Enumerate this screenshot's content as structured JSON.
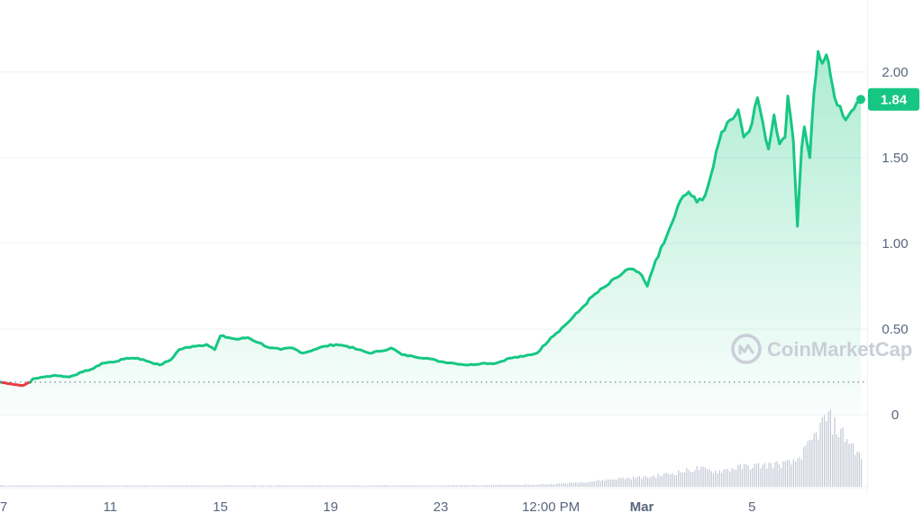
{
  "chart_data": {
    "type": "area",
    "y_axis": {
      "ticks": [
        0,
        0.5,
        1.0,
        1.5,
        2.0
      ],
      "tick_labels": [
        "0",
        "0.50",
        "1.00",
        "1.50",
        "2.00"
      ],
      "range": [
        0,
        2.4
      ]
    },
    "x_axis": {
      "range": [
        "Feb 7",
        "Mar 6 PM"
      ],
      "ticks": [
        {
          "t": 0,
          "label": "7"
        },
        {
          "t": 4,
          "label": "11"
        },
        {
          "t": 8,
          "label": "15"
        },
        {
          "t": 12,
          "label": "19"
        },
        {
          "t": 16,
          "label": "23"
        },
        {
          "t": 20,
          "label": "12:00 PM"
        },
        {
          "t": 23.3,
          "label": "Mar",
          "bold": true
        },
        {
          "t": 27.3,
          "label": "5"
        }
      ]
    },
    "reference_price": 0.19,
    "current_price": {
      "value": 1.84,
      "label": "1.84"
    },
    "series": [
      {
        "values": [
          [
            0,
            0.19
          ],
          [
            0.4,
            0.18
          ],
          [
            0.8,
            0.17
          ],
          [
            1.1,
            0.19
          ],
          [
            1.2,
            0.21
          ],
          [
            1.6,
            0.22
          ],
          [
            2.0,
            0.23
          ],
          [
            2.5,
            0.22
          ],
          [
            3.0,
            0.25
          ],
          [
            3.4,
            0.27
          ],
          [
            3.7,
            0.3
          ],
          [
            4.2,
            0.31
          ],
          [
            4.6,
            0.33
          ],
          [
            5.0,
            0.33
          ],
          [
            5.4,
            0.31
          ],
          [
            5.8,
            0.29
          ],
          [
            6.2,
            0.32
          ],
          [
            6.5,
            0.38
          ],
          [
            7.0,
            0.4
          ],
          [
            7.5,
            0.41
          ],
          [
            7.8,
            0.38
          ],
          [
            8.0,
            0.46
          ],
          [
            8.3,
            0.45
          ],
          [
            8.6,
            0.44
          ],
          [
            9.0,
            0.45
          ],
          [
            9.4,
            0.42
          ],
          [
            9.8,
            0.39
          ],
          [
            10.2,
            0.38
          ],
          [
            10.6,
            0.39
          ],
          [
            11.0,
            0.36
          ],
          [
            11.4,
            0.38
          ],
          [
            11.8,
            0.4
          ],
          [
            12.2,
            0.41
          ],
          [
            12.6,
            0.4
          ],
          [
            13.0,
            0.38
          ],
          [
            13.4,
            0.36
          ],
          [
            13.8,
            0.37
          ],
          [
            14.2,
            0.39
          ],
          [
            14.6,
            0.35
          ],
          [
            15.0,
            0.34
          ],
          [
            15.5,
            0.33
          ],
          [
            16.0,
            0.31
          ],
          [
            16.5,
            0.3
          ],
          [
            17.0,
            0.29
          ],
          [
            17.5,
            0.3
          ],
          [
            18.0,
            0.3
          ],
          [
            18.5,
            0.33
          ],
          [
            19.0,
            0.34
          ],
          [
            19.5,
            0.36
          ],
          [
            20.0,
            0.45
          ],
          [
            20.5,
            0.52
          ],
          [
            21.0,
            0.6
          ],
          [
            21.5,
            0.69
          ],
          [
            22.0,
            0.75
          ],
          [
            22.4,
            0.8
          ],
          [
            22.8,
            0.85
          ],
          [
            23.2,
            0.83
          ],
          [
            23.5,
            0.75
          ],
          [
            23.8,
            0.9
          ],
          [
            24.1,
            1.0
          ],
          [
            24.4,
            1.12
          ],
          [
            24.7,
            1.25
          ],
          [
            25.0,
            1.3
          ],
          [
            25.3,
            1.24
          ],
          [
            25.6,
            1.28
          ],
          [
            25.9,
            1.45
          ],
          [
            26.2,
            1.65
          ],
          [
            26.5,
            1.72
          ],
          [
            26.8,
            1.78
          ],
          [
            27.0,
            1.62
          ],
          [
            27.3,
            1.7
          ],
          [
            27.5,
            1.85
          ],
          [
            27.7,
            1.7
          ],
          [
            27.9,
            1.55
          ],
          [
            28.1,
            1.75
          ],
          [
            28.3,
            1.58
          ],
          [
            28.5,
            1.62
          ],
          [
            28.6,
            1.86
          ],
          [
            28.8,
            1.6
          ],
          [
            28.95,
            1.1
          ],
          [
            29.1,
            1.55
          ],
          [
            29.2,
            1.68
          ],
          [
            29.4,
            1.5
          ],
          [
            29.55,
            1.88
          ],
          [
            29.7,
            2.12
          ],
          [
            29.85,
            2.05
          ],
          [
            30.0,
            2.1
          ],
          [
            30.15,
            1.98
          ],
          [
            30.3,
            1.85
          ],
          [
            30.5,
            1.8
          ],
          [
            30.7,
            1.72
          ],
          [
            30.9,
            1.77
          ],
          [
            31.1,
            1.82
          ],
          [
            31.25,
            1.84
          ]
        ]
      }
    ],
    "volume": [
      [
        0,
        0.02
      ],
      [
        4,
        0.02
      ],
      [
        8,
        0.02
      ],
      [
        12,
        0.02
      ],
      [
        16,
        0.02
      ],
      [
        19.5,
        0.03
      ],
      [
        20.5,
        0.05
      ],
      [
        21.5,
        0.08
      ],
      [
        22.5,
        0.12
      ],
      [
        23.5,
        0.14
      ],
      [
        24.5,
        0.2
      ],
      [
        25.3,
        0.26
      ],
      [
        26.0,
        0.22
      ],
      [
        26.8,
        0.28
      ],
      [
        27.5,
        0.3
      ],
      [
        28.2,
        0.32
      ],
      [
        28.8,
        0.34
      ],
      [
        29.3,
        0.55
      ],
      [
        29.7,
        0.8
      ],
      [
        30.0,
        1.0
      ],
      [
        30.3,
        0.85
      ],
      [
        30.7,
        0.7
      ],
      [
        31.0,
        0.55
      ],
      [
        31.25,
        0.4
      ]
    ]
  },
  "watermark": "CoinMarketCap",
  "colors": {
    "line_up": "#16c784",
    "line_down": "#ea3943",
    "area_top": "#16c784",
    "grid": "#eff2f5",
    "volume": "#c3c9d6",
    "badge": "#16c784"
  }
}
